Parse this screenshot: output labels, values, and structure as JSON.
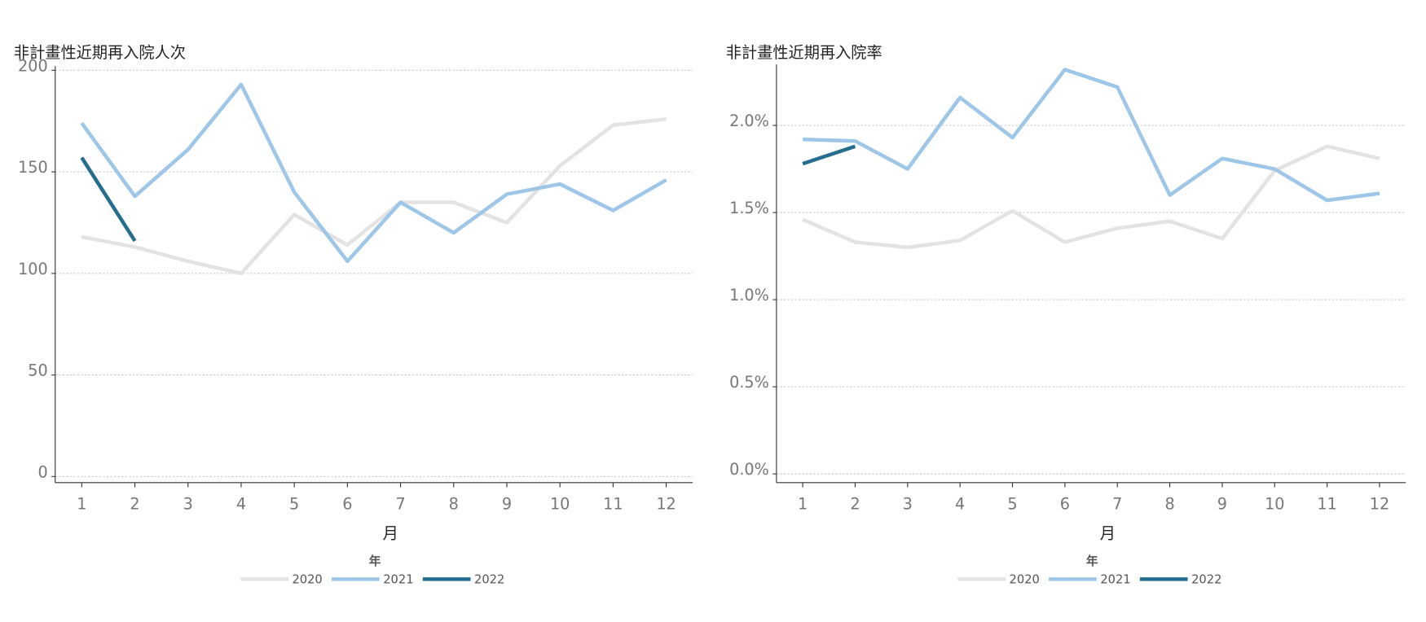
{
  "chart_data": [
    {
      "type": "line",
      "title": "非計畫性近期再入院人次",
      "x_label": "月",
      "legend_title": "年",
      "x": [
        1,
        2,
        3,
        4,
        5,
        6,
        7,
        8,
        9,
        10,
        11,
        12
      ],
      "xlim": [
        0.5,
        12.5
      ],
      "xticks": [
        1,
        2,
        3,
        4,
        5,
        6,
        7,
        8,
        9,
        10,
        11,
        12
      ],
      "ylim": [
        -3,
        202
      ],
      "yticks": [
        0,
        50,
        100,
        150,
        200
      ],
      "grid": true,
      "series": [
        {
          "name": "2020",
          "color": "#e3e3e3",
          "values": [
            118,
            113,
            106,
            100,
            129,
            114,
            135,
            135,
            125,
            153,
            173,
            176
          ]
        },
        {
          "name": "2021",
          "color": "#9dc6e8",
          "values": [
            174,
            138,
            161,
            193,
            140,
            106,
            135,
            120,
            139,
            144,
            131,
            146
          ]
        },
        {
          "name": "2022",
          "color": "#256d8f",
          "values": [
            157,
            116,
            null,
            null,
            null,
            null,
            null,
            null,
            null,
            null,
            null,
            null
          ]
        }
      ]
    },
    {
      "type": "line",
      "title": "非計畫性近期再入院率",
      "x_label": "月",
      "legend_title": "年",
      "x": [
        1,
        2,
        3,
        4,
        5,
        6,
        7,
        8,
        9,
        10,
        11,
        12
      ],
      "xlim": [
        0.5,
        12.5
      ],
      "xticks": [
        1,
        2,
        3,
        4,
        5,
        6,
        7,
        8,
        9,
        10,
        11,
        12
      ],
      "ylim": [
        -0.05,
        2.35
      ],
      "yticks": [
        {
          "value": 0,
          "label": "0.0%"
        },
        {
          "value": 0.5,
          "label": "0.5%"
        },
        {
          "value": 1,
          "label": "1.0%"
        },
        {
          "value": 1.5,
          "label": "1.5%"
        },
        {
          "value": 2,
          "label": "2.0%"
        }
      ],
      "grid": true,
      "series": [
        {
          "name": "2020",
          "color": "#e3e3e3",
          "values": [
            1.46,
            1.33,
            1.3,
            1.34,
            1.51,
            1.33,
            1.41,
            1.45,
            1.35,
            1.74,
            1.88,
            1.81
          ]
        },
        {
          "name": "2021",
          "color": "#9dc6e8",
          "values": [
            1.92,
            1.91,
            1.75,
            2.16,
            1.93,
            2.32,
            2.22,
            1.6,
            1.81,
            1.75,
            1.57,
            1.61
          ]
        },
        {
          "name": "2022",
          "color": "#256d8f",
          "values": [
            1.78,
            1.88,
            null,
            null,
            null,
            null,
            null,
            null,
            null,
            null,
            null,
            null
          ]
        }
      ]
    }
  ]
}
